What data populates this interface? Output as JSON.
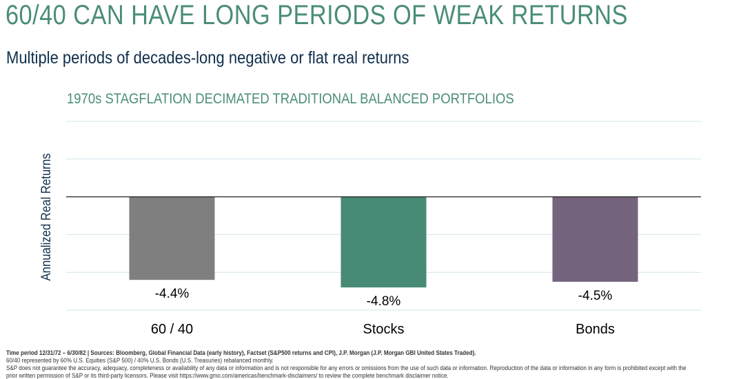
{
  "header": {
    "title": "60/40 CAN HAVE LONG PERIODS OF WEAK RETURNS",
    "subtitle": "Multiple periods of decades-long negative or flat real returns"
  },
  "chart_data": {
    "type": "bar",
    "title": "1970s STAGFLATION DECIMATED TRADITIONAL BALANCED PORTFOLIOS",
    "ylabel": "Annualized Real Returns",
    "xlabel": "",
    "categories": [
      "60 / 40",
      "Stocks",
      "Bonds"
    ],
    "values": [
      -4.4,
      -4.8,
      -4.5
    ],
    "data_labels": [
      "-4.4%",
      "-4.8%",
      "-4.5%"
    ],
    "colors": [
      "#7f7f7f",
      "#478a76",
      "#75647e"
    ],
    "ylim": [
      -6,
      4
    ],
    "grid": true,
    "legend": "none"
  },
  "footer": {
    "line1": "Time period 12/31/72 – 6/30/82 | Sources: Bloomberg, Global Financial Data (early history), Factset (S&P500 returns and CPI), J.P. Morgan (J.P. Morgan GBI United States Traded).",
    "line2": "60/40 represented by 60% U.S. Equities (S&P 500) / 40% U.S. Bonds (U.S. Treasuries) rebalanced monthly.",
    "line3": "S&P does not guarantee the accuracy, adequacy, completeness or availability of any data or information and is not responsible for any errors or omissions from the use of such data or information. Reproduction of the data or information in any form is prohibited except with the",
    "line4": "prior written permission of S&P or its third-party licensors. Please visit https://www.gmo.com/americas/benchmark-disclaimers/ to review the complete benchmark disclaimer notice."
  }
}
